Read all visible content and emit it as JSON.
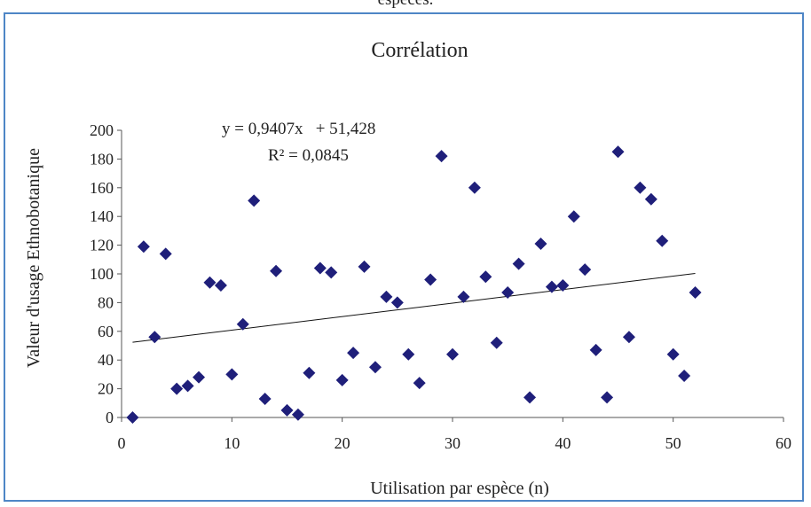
{
  "caption_fragment": "espèces.",
  "chart_data": {
    "type": "scatter",
    "title": "Corrélation",
    "xlabel": "Utilisation par espèce (n)",
    "ylabel": "Valeur d'usage Ethnobotanique",
    "xlim": [
      0,
      60
    ],
    "ylim": [
      0,
      200
    ],
    "xticks": [
      0,
      10,
      20,
      30,
      40,
      50,
      60
    ],
    "yticks": [
      0,
      20,
      40,
      60,
      80,
      100,
      120,
      140,
      160,
      180,
      200
    ],
    "grid": false,
    "marker_color": "#1f1f7a",
    "trendline": {
      "slope": 0.9407,
      "intercept": 51.428,
      "x_range": [
        1,
        52
      ],
      "equation": "y = 0,9407x   + 51,428",
      "r2": "R² = 0,0845"
    },
    "points": [
      {
        "x": 1,
        "y": 0
      },
      {
        "x": 2,
        "y": 119
      },
      {
        "x": 3,
        "y": 56
      },
      {
        "x": 4,
        "y": 114
      },
      {
        "x": 5,
        "y": 20
      },
      {
        "x": 6,
        "y": 22
      },
      {
        "x": 7,
        "y": 28
      },
      {
        "x": 8,
        "y": 94
      },
      {
        "x": 9,
        "y": 92
      },
      {
        "x": 10,
        "y": 30
      },
      {
        "x": 11,
        "y": 65
      },
      {
        "x": 12,
        "y": 151
      },
      {
        "x": 13,
        "y": 13
      },
      {
        "x": 14,
        "y": 102
      },
      {
        "x": 15,
        "y": 5
      },
      {
        "x": 16,
        "y": 2
      },
      {
        "x": 17,
        "y": 31
      },
      {
        "x": 18,
        "y": 104
      },
      {
        "x": 19,
        "y": 101
      },
      {
        "x": 20,
        "y": 26
      },
      {
        "x": 21,
        "y": 45
      },
      {
        "x": 22,
        "y": 105
      },
      {
        "x": 23,
        "y": 35
      },
      {
        "x": 24,
        "y": 84
      },
      {
        "x": 25,
        "y": 80
      },
      {
        "x": 26,
        "y": 44
      },
      {
        "x": 27,
        "y": 24
      },
      {
        "x": 28,
        "y": 96
      },
      {
        "x": 29,
        "y": 182
      },
      {
        "x": 30,
        "y": 44
      },
      {
        "x": 31,
        "y": 84
      },
      {
        "x": 32,
        "y": 160
      },
      {
        "x": 33,
        "y": 98
      },
      {
        "x": 34,
        "y": 52
      },
      {
        "x": 35,
        "y": 87
      },
      {
        "x": 36,
        "y": 107
      },
      {
        "x": 37,
        "y": 14
      },
      {
        "x": 38,
        "y": 121
      },
      {
        "x": 39,
        "y": 91
      },
      {
        "x": 40,
        "y": 92
      },
      {
        "x": 41,
        "y": 140
      },
      {
        "x": 42,
        "y": 103
      },
      {
        "x": 43,
        "y": 47
      },
      {
        "x": 44,
        "y": 14
      },
      {
        "x": 45,
        "y": 185
      },
      {
        "x": 46,
        "y": 56
      },
      {
        "x": 47,
        "y": 160
      },
      {
        "x": 48,
        "y": 152
      },
      {
        "x": 49,
        "y": 123
      },
      {
        "x": 50,
        "y": 44
      },
      {
        "x": 51,
        "y": 29
      },
      {
        "x": 52,
        "y": 87
      }
    ]
  }
}
